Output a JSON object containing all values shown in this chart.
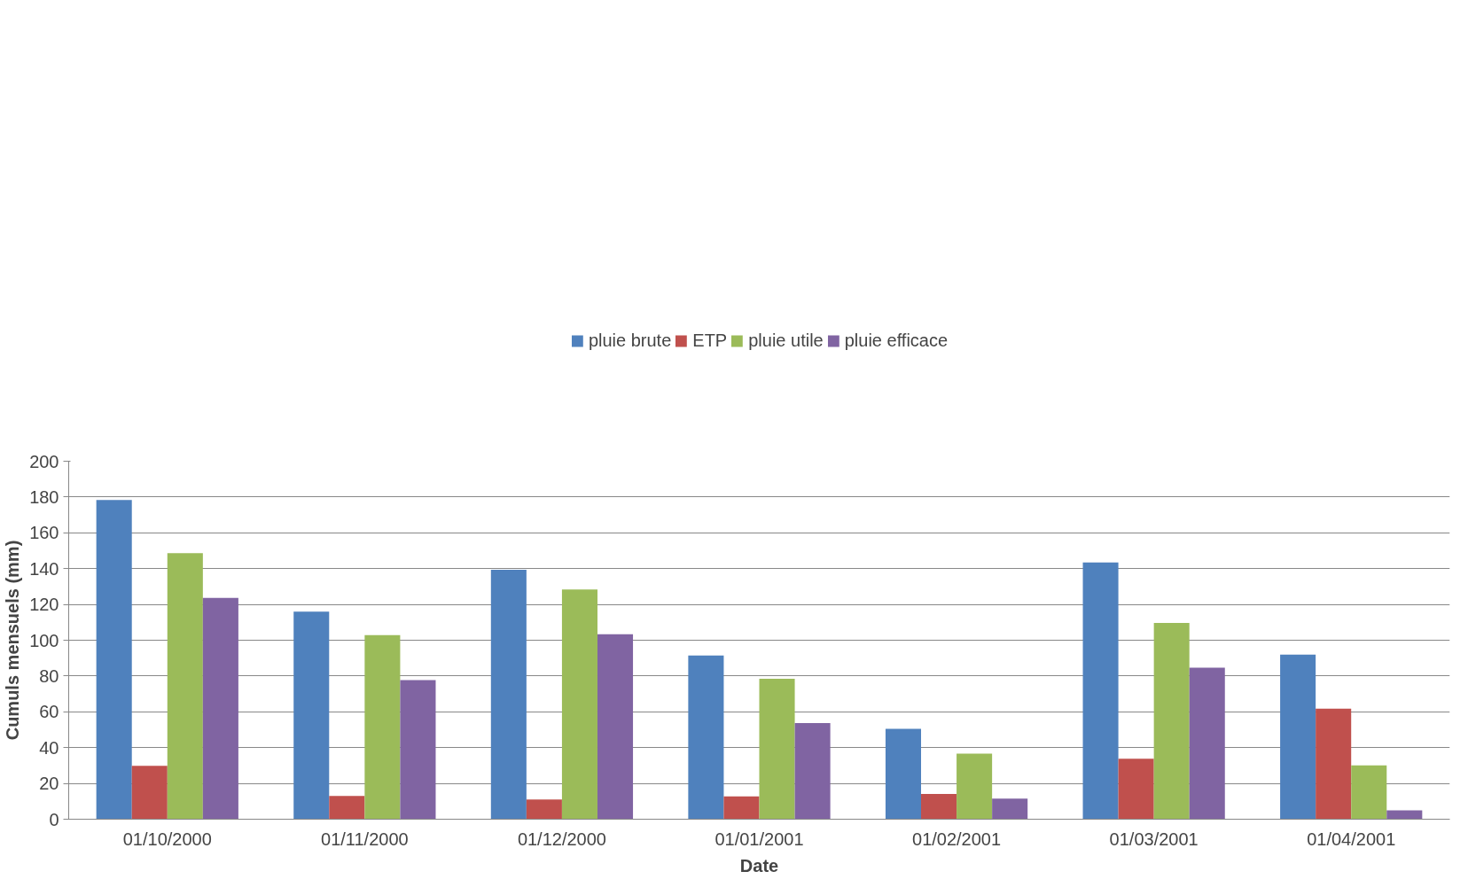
{
  "chart_data": {
    "type": "bar",
    "xlabel": "Date",
    "ylabel": "Cumuls mensuels (mm)",
    "categories": [
      "01/10/2000",
      "01/11/2000",
      "01/12/2000",
      "01/01/2001",
      "01/02/2001",
      "01/03/2001",
      "01/04/2001"
    ],
    "series": [
      {
        "name": "pluie brute",
        "color": "#4f81bd",
        "values": [
          178.3,
          116,
          139.3,
          91.4,
          50.5,
          143.5,
          91.9
        ]
      },
      {
        "name": "ETP",
        "color": "#c0504d",
        "values": [
          29.8,
          13,
          11,
          12.8,
          14.1,
          33.8,
          61.8
        ]
      },
      {
        "name": "pluie utile",
        "color": "#9bbb59",
        "values": [
          148.7,
          102.9,
          128.3,
          78.5,
          36.6,
          109.7,
          30.1
        ]
      },
      {
        "name": "pluie efficace",
        "color": "#8064a2",
        "values": [
          123.6,
          77.7,
          103.4,
          53.7,
          11.5,
          84.6,
          5
        ]
      }
    ],
    "ylim": [
      0,
      200
    ],
    "yticks": [
      0,
      20,
      40,
      60,
      80,
      100,
      120,
      140,
      160,
      180,
      200
    ],
    "grid": "y",
    "legend": "top"
  }
}
